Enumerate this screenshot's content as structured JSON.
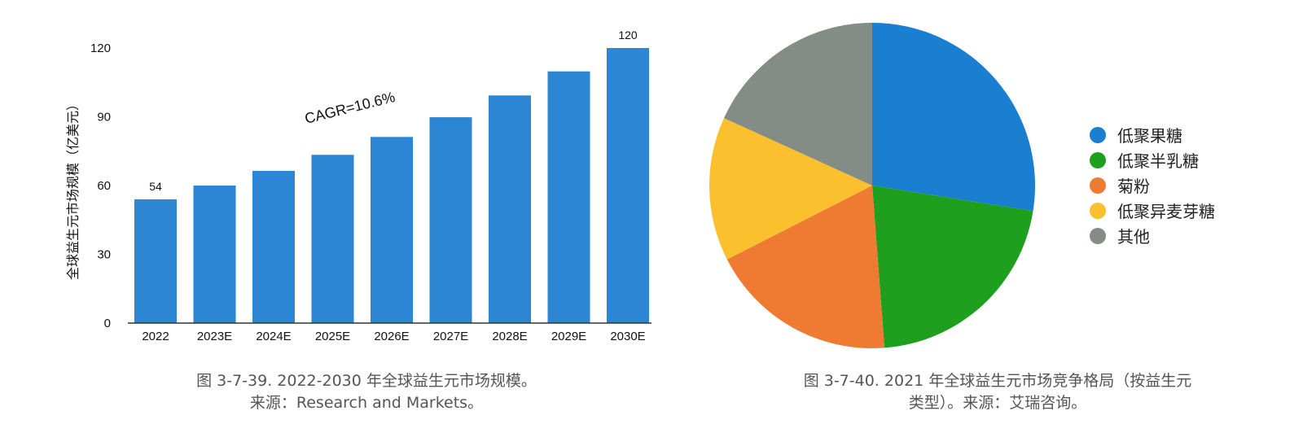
{
  "chart_data": [
    {
      "type": "bar",
      "categories": [
        "2022",
        "2023E",
        "2024E",
        "2025E",
        "2026E",
        "2027E",
        "2028E",
        "2029E",
        "2030E"
      ],
      "values": [
        54,
        60,
        66.4,
        73.4,
        81.2,
        89.8,
        99.3,
        109.8,
        120
      ],
      "data_labels": {
        "0": "54",
        "8": "120"
      },
      "ylabel": "全球益生元市场规模（亿美元）",
      "ylim": [
        0,
        120
      ],
      "yticks": [
        "0",
        "30",
        "60",
        "90",
        "120"
      ],
      "annotation": "CAGR=10.6%",
      "grid": false,
      "color": "#2c86d3"
    },
    {
      "type": "pie",
      "labels": [
        "低聚果糖",
        "低聚半乳糖",
        "菊粉",
        "低聚异麦芽糖",
        "其他"
      ],
      "values": [
        27.5,
        21.3,
        18.7,
        14.3,
        18.2
      ],
      "colors": [
        "#1b7fd1",
        "#1ea01e",
        "#ef7a31",
        "#fbc02d",
        "#848c86"
      ],
      "legend_position": "right"
    }
  ],
  "captions": {
    "left_line1": "图 3-7-39. 2022-2030 年全球益生元市场规模。",
    "left_line2": "来源：Research and Markets。",
    "right_line1": "图 3-7-40. 2021 年全球益生元市场竞争格局（按益生元",
    "right_line2": "类型）。来源：艾瑞咨询。"
  }
}
